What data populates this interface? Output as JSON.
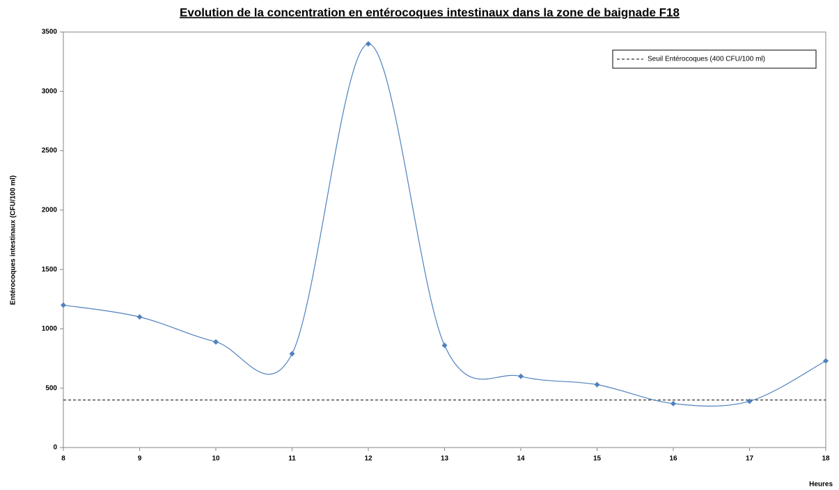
{
  "chart_data": {
    "type": "line",
    "title": "Evolution de la concentration en entérocoques intestinaux dans la zone de baignade F18",
    "y_label": "Entérocoques  intestinaux  (CFU/100 ml)",
    "x_label": "Heures",
    "x": [
      8,
      9,
      10,
      11,
      12,
      13,
      14,
      15,
      16,
      17,
      18
    ],
    "series": [
      {
        "name": null,
        "color": "#4f81bd",
        "values": [
          1200,
          1100,
          890,
          790,
          3400,
          860,
          600,
          530,
          370,
          390,
          730
        ]
      }
    ],
    "smooth": true,
    "threshold": {
      "name": "Seuil Entérocoques (400 CFU/100 ml)",
      "value": 400,
      "color": "#000000"
    },
    "xlim": [
      8,
      18
    ],
    "xticks": [
      8,
      9,
      10,
      11,
      12,
      13,
      14,
      15,
      16,
      17,
      18
    ],
    "ylim": [
      0,
      3500
    ],
    "yticks": [
      0,
      500,
      1000,
      1500,
      2000,
      2500,
      3000,
      3500
    ],
    "grid": false,
    "legend": "upper right"
  }
}
